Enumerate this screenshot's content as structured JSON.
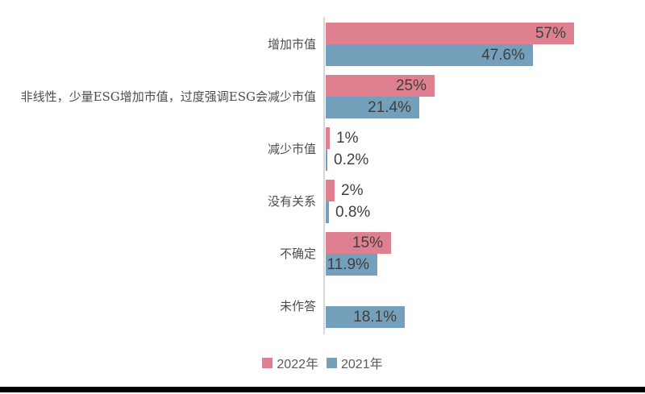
{
  "chart_data": {
    "type": "bar",
    "orientation": "horizontal",
    "title": "",
    "xlabel": "",
    "ylabel": "",
    "xlim": [
      0,
      60
    ],
    "grid": false,
    "axis_line_color": "#d9d9d9",
    "legend_position": "bottom-center",
    "categories": [
      "增加市值",
      "非线性，少量ESG增加市值，过度强调ESG会减少市值",
      "减少市值",
      "没有关系",
      "不确定",
      "未作答"
    ],
    "series": [
      {
        "name": "2022年",
        "key": "2022",
        "color": "#de8090",
        "values": [
          57,
          25,
          1,
          2,
          15,
          null
        ],
        "labels": [
          "57%",
          "25%",
          "1%",
          "2%",
          "15%",
          ""
        ]
      },
      {
        "name": "2021年",
        "key": "2021",
        "color": "#74a0bc",
        "values": [
          47.6,
          21.4,
          0.2,
          0.8,
          11.9,
          18.1
        ],
        "labels": [
          "47.6%",
          "21.4%",
          "0.2%",
          "0.8%",
          "11.9%",
          "18.1%"
        ]
      }
    ]
  },
  "legend": {
    "items": [
      {
        "label": "2022年",
        "color": "#de8090"
      },
      {
        "label": "2021年",
        "color": "#74a0bc"
      }
    ]
  },
  "colors": {
    "background": "#ffffff",
    "value_text": "#3f3f3f",
    "category_text": "#4d4d4d",
    "legend_text": "#595959",
    "bottom_bar": "#000000"
  }
}
